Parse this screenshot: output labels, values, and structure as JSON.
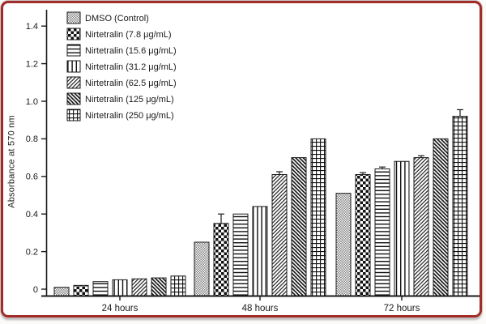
{
  "figure": {
    "border_color": "#a12c28",
    "outer_edge_color": "#c9c6c4",
    "background": "#ffffff",
    "axis_color": "#1a1a1a",
    "text_color": "#1a1a1a"
  },
  "chart_data": {
    "type": "bar",
    "title": "",
    "xlabel": "",
    "ylabel": "Absorbance at 570 nm",
    "categories": [
      "24 hours",
      "48 hours",
      "72 hours"
    ],
    "y_ticks": [
      0,
      0.2,
      0.4,
      0.6,
      0.8,
      1.0,
      1.2,
      1.4
    ],
    "y_tick_labels": [
      "0",
      "0.2",
      "0.4",
      "0.6",
      "0.8",
      "1.0",
      "1.2",
      "1.4"
    ],
    "ylim": [
      -0.035,
      1.5
    ],
    "grid": false,
    "legend_position": "upper-left",
    "bar_baseline": -0.035,
    "series": [
      {
        "name": "DMSO (Control)",
        "pattern": "fine-checker-gray",
        "values": [
          0.01,
          0.25,
          0.51
        ],
        "errors": [
          0,
          0,
          0
        ]
      },
      {
        "name": "Nirtetralin (7.8 μg/mL)",
        "pattern": "checkerboard",
        "values": [
          0.02,
          0.35,
          0.61
        ],
        "errors": [
          0,
          0.05,
          0.01
        ]
      },
      {
        "name": "Nirtetralin (15.6 μg/mL)",
        "pattern": "horizontal-lines",
        "values": [
          0.04,
          0.4,
          0.64
        ],
        "errors": [
          0,
          0,
          0.01
        ]
      },
      {
        "name": "Nirtetralin (31.2 μg/mL)",
        "pattern": "vertical-lines",
        "values": [
          0.05,
          0.44,
          0.68
        ],
        "errors": [
          0,
          0,
          0
        ]
      },
      {
        "name": "Nirtetralin (62.5 μg/mL)",
        "pattern": "diagonal-up",
        "values": [
          0.055,
          0.61,
          0.7
        ],
        "errors": [
          0,
          0.015,
          0.01
        ]
      },
      {
        "name": "Nirtetralin (125 μg/mL)",
        "pattern": "diagonal-down",
        "values": [
          0.06,
          0.7,
          0.8
        ],
        "errors": [
          0,
          0,
          0
        ]
      },
      {
        "name": "Nirtetralin (250 μg/mL)",
        "pattern": "grid",
        "values": [
          0.07,
          0.8,
          0.92
        ],
        "errors": [
          0,
          0,
          0.035
        ]
      }
    ]
  }
}
